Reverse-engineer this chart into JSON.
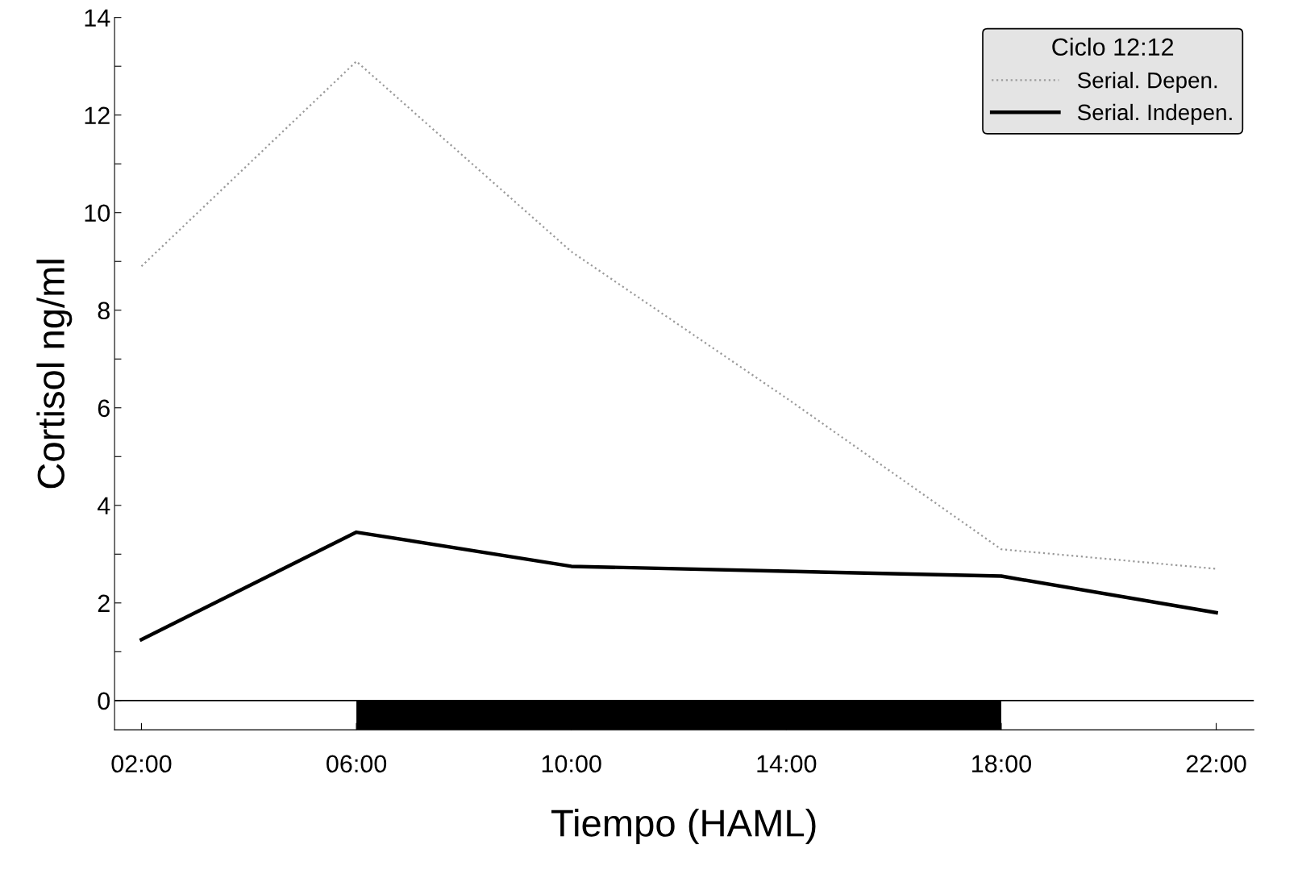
{
  "chart_data": {
    "type": "line",
    "xlabel": "Tiempo (HAML)",
    "ylabel": "Cortisol ng/ml",
    "legend_title": "Ciclo 12:12",
    "legend": "top right",
    "grid": false,
    "marker": "none",
    "x": [
      2,
      6,
      10,
      14,
      18,
      22
    ],
    "series": [
      {
        "name": "Serial. Depen.",
        "color": "#9a9a9a",
        "line_style": "dotted",
        "values": [
          8.9,
          13.1,
          9.2,
          6.2,
          3.1,
          2.7
        ]
      },
      {
        "name": "Serial. Indepen.",
        "color": "#000000",
        "line_style": "solid",
        "values": [
          1.25,
          3.45,
          2.75,
          2.65,
          2.55,
          1.8
        ]
      }
    ],
    "xlim": [
      1.5,
      22.7
    ],
    "xticks": [
      {
        "value": 2,
        "label": "02:00"
      },
      {
        "value": 6,
        "label": "06:00"
      },
      {
        "value": 10,
        "label": "10:00"
      },
      {
        "value": 14,
        "label": "14:00"
      },
      {
        "value": 18,
        "label": "18:00"
      },
      {
        "value": 22,
        "label": "22:00"
      }
    ],
    "ylim": [
      -0.6,
      14
    ],
    "yticks": [
      0,
      {
        "value": 1,
        "label": null
      },
      2,
      {
        "value": 3,
        "label": null
      },
      4,
      {
        "value": 5,
        "label": null
      },
      6,
      {
        "value": 7,
        "label": null
      },
      8,
      {
        "value": 9,
        "label": null
      },
      10,
      {
        "value": 11,
        "label": null
      },
      12,
      {
        "value": 13,
        "label": null
      },
      14
    ],
    "ref_lines": [
      {
        "axis": "y",
        "value": 0,
        "color": "#000000",
        "line_style": "solid"
      }
    ],
    "bands": [
      {
        "axis": "x",
        "from": 6,
        "to": 18,
        "color": "#000000"
      }
    ]
  }
}
